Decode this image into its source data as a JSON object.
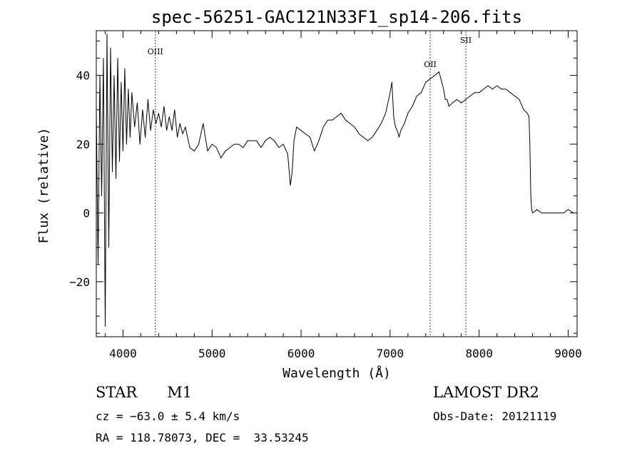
{
  "chart_data": {
    "type": "line",
    "title": "spec-56251-GAC121N33F1_sp14-206.fits",
    "xlabel": "Wavelength (Å)",
    "ylabel": "Flux (relative)",
    "xlim": [
      3700,
      9100
    ],
    "ylim": [
      -36,
      53
    ],
    "x_ticks": [
      4000,
      5000,
      6000,
      7000,
      8000,
      9000
    ],
    "y_ticks": [
      -20,
      0,
      20,
      40
    ],
    "line_color": "#000000",
    "marker_color": "#a01010",
    "lines": [
      {
        "label": "OIII",
        "wavelength": 4363
      },
      {
        "label": "OII",
        "wavelength": 7450
      },
      {
        "label": "SII",
        "wavelength": 7850
      }
    ],
    "series": [
      {
        "x": [
          3700,
          3720,
          3740,
          3760,
          3780,
          3800,
          3820,
          3840,
          3860,
          3880,
          3900,
          3920,
          3940,
          3960,
          3980,
          4000,
          4020,
          4040,
          4060,
          4080,
          4100,
          4130,
          4160,
          4190,
          4220,
          4250,
          4280,
          4310,
          4340,
          4370,
          4400,
          4430,
          4460,
          4490,
          4520,
          4550,
          4580,
          4610,
          4640,
          4670,
          4700,
          4750,
          4800,
          4850,
          4900,
          4950,
          5000,
          5050,
          5100,
          5150,
          5200,
          5250,
          5300,
          5350,
          5400,
          5450,
          5500,
          5550,
          5600,
          5650,
          5700,
          5750,
          5800,
          5850,
          5880,
          5900,
          5920,
          5950,
          6000,
          6050,
          6100,
          6150,
          6200,
          6250,
          6300,
          6350,
          6400,
          6450,
          6500,
          6550,
          6600,
          6650,
          6700,
          6750,
          6800,
          6850,
          6900,
          6950,
          7000,
          7020,
          7040,
          7060,
          7080,
          7100,
          7120,
          7140,
          7160,
          7200,
          7250,
          7300,
          7350,
          7400,
          7450,
          7500,
          7550,
          7580,
          7600,
          7620,
          7640,
          7660,
          7700,
          7750,
          7800,
          7850,
          7900,
          7950,
          8000,
          8050,
          8100,
          8150,
          8200,
          8250,
          8300,
          8350,
          8400,
          8450,
          8500,
          8540,
          8560,
          8570,
          8580,
          8590,
          8600,
          8650,
          8700,
          8750,
          8800,
          8850,
          8900,
          8950,
          9000,
          9060
        ],
        "y": [
          30,
          -15,
          40,
          5,
          45,
          -33,
          52,
          -10,
          48,
          12,
          40,
          10,
          45,
          15,
          38,
          18,
          42,
          20,
          36,
          22,
          35,
          25,
          32,
          20,
          30,
          22,
          33,
          24,
          30,
          26,
          29,
          25,
          31,
          24,
          28,
          24,
          30,
          22,
          26,
          23,
          25,
          19,
          18,
          20,
          26,
          18,
          20,
          19,
          16,
          18,
          19,
          20,
          20,
          19,
          21,
          21,
          21,
          19,
          21,
          22,
          21,
          19,
          20,
          17,
          8,
          12,
          21,
          25,
          24,
          23,
          22,
          18,
          21,
          25,
          27,
          27,
          28,
          29,
          27,
          26,
          25,
          23,
          22,
          21,
          22,
          24,
          26,
          29,
          35,
          38,
          28,
          25,
          24,
          22,
          24,
          25,
          26,
          29,
          31,
          34,
          35,
          38,
          39,
          40,
          41,
          38,
          36,
          33,
          33,
          31,
          32,
          33,
          32,
          33,
          34,
          35,
          35,
          36,
          37,
          36,
          37,
          36,
          36,
          35,
          34,
          33,
          30,
          29,
          28,
          20,
          5,
          1,
          0,
          1,
          0,
          0,
          0,
          0,
          0,
          0,
          1,
          0
        ]
      }
    ]
  },
  "info": {
    "object_type": "STAR",
    "subclass": "M1",
    "survey": "LAMOST DR2",
    "cz": "cz = −63.0 ± 5.4 km/s",
    "obs_date": "Obs-Date: 20121119",
    "radec": "RA = 118.78073, DEC =  33.53245"
  }
}
